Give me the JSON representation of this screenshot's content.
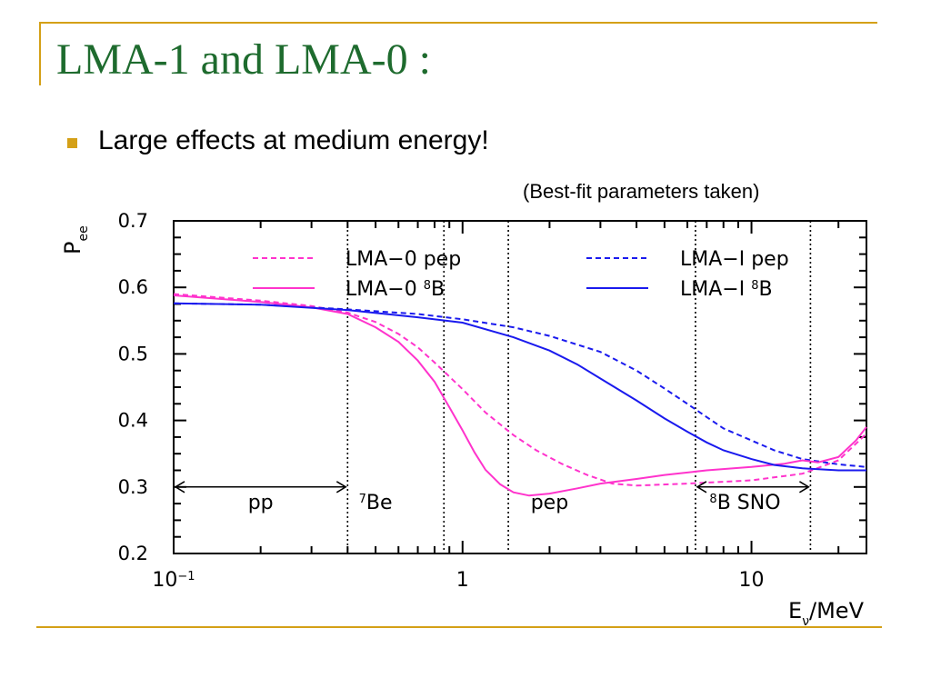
{
  "slide": {
    "title": "LMA-1 and LMA-0 :",
    "bullet": "Large effects at medium energy!",
    "note": "(Best-fit parameters taken)",
    "accent_color": "#d4a017",
    "title_color": "#1e6b2e"
  },
  "chart_data": {
    "type": "line",
    "xscale": "log",
    "xlim": [
      0.1,
      25
    ],
    "ylim": [
      0.2,
      0.7
    ],
    "xlabel": "E",
    "xlabel_sub": "ν",
    "xlabel_unit": "/MeV",
    "ylabel": "P",
    "ylabel_sub": "ee",
    "x_tick_labels": [
      {
        "base": "10",
        "sup": "−1",
        "x": 0.1
      },
      {
        "base": "1",
        "sup": "",
        "x": 1
      },
      {
        "base": "10",
        "sup": "",
        "x": 10
      }
    ],
    "y_ticks": [
      0.2,
      0.3,
      0.4,
      0.5,
      0.6,
      0.7
    ],
    "y_tick_labels": [
      "0.2",
      "0.3",
      "0.4",
      "0.5",
      "0.6",
      "0.7"
    ],
    "legend_position": "top",
    "series": [
      {
        "name_prefix": "LMA−0 pep",
        "name_sup": "",
        "name_suffix": "",
        "color": "#ff33cc",
        "dashed": true,
        "points": [
          [
            0.1,
            0.59
          ],
          [
            0.2,
            0.58
          ],
          [
            0.3,
            0.572
          ],
          [
            0.4,
            0.562
          ],
          [
            0.5,
            0.548
          ],
          [
            0.6,
            0.53
          ],
          [
            0.7,
            0.51
          ],
          [
            0.8,
            0.487
          ],
          [
            1.0,
            0.447
          ],
          [
            1.2,
            0.412
          ],
          [
            1.5,
            0.378
          ],
          [
            1.8,
            0.355
          ],
          [
            2.2,
            0.335
          ],
          [
            2.7,
            0.318
          ],
          [
            3.3,
            0.305
          ],
          [
            4,
            0.302
          ],
          [
            6,
            0.305
          ],
          [
            10,
            0.31
          ],
          [
            15,
            0.32
          ],
          [
            20,
            0.34
          ],
          [
            25,
            0.38
          ]
        ]
      },
      {
        "name_prefix": "LMA−I pep",
        "name_sup": "",
        "name_suffix": "",
        "color": "#1a1aee",
        "dashed": true,
        "points": [
          [
            0.1,
            0.576
          ],
          [
            0.2,
            0.574
          ],
          [
            0.4,
            0.567
          ],
          [
            0.7,
            0.56
          ],
          [
            1.0,
            0.552
          ],
          [
            1.5,
            0.54
          ],
          [
            2,
            0.527
          ],
          [
            3,
            0.503
          ],
          [
            4,
            0.475
          ],
          [
            5,
            0.448
          ],
          [
            6,
            0.425
          ],
          [
            7,
            0.405
          ],
          [
            8,
            0.388
          ],
          [
            10,
            0.37
          ],
          [
            12,
            0.355
          ],
          [
            15,
            0.342
          ],
          [
            20,
            0.334
          ],
          [
            25,
            0.33
          ]
        ]
      },
      {
        "name_prefix": "LMA−0 ",
        "name_sup": "8",
        "name_suffix": "B",
        "color": "#ff33cc",
        "dashed": false,
        "points": [
          [
            0.1,
            0.588
          ],
          [
            0.2,
            0.578
          ],
          [
            0.3,
            0.57
          ],
          [
            0.4,
            0.56
          ],
          [
            0.5,
            0.54
          ],
          [
            0.6,
            0.518
          ],
          [
            0.7,
            0.49
          ],
          [
            0.8,
            0.458
          ],
          [
            0.9,
            0.42
          ],
          [
            1.0,
            0.385
          ],
          [
            1.1,
            0.352
          ],
          [
            1.2,
            0.326
          ],
          [
            1.35,
            0.304
          ],
          [
            1.5,
            0.292
          ],
          [
            1.7,
            0.287
          ],
          [
            2,
            0.29
          ],
          [
            2.5,
            0.298
          ],
          [
            3,
            0.305
          ],
          [
            4,
            0.312
          ],
          [
            5,
            0.318
          ],
          [
            7,
            0.325
          ],
          [
            10,
            0.33
          ],
          [
            13,
            0.335
          ],
          [
            15,
            0.34
          ],
          [
            17,
            0.337
          ],
          [
            20,
            0.345
          ],
          [
            23,
            0.37
          ],
          [
            25,
            0.39
          ]
        ]
      },
      {
        "name_prefix": "LMA−I ",
        "name_sup": "8",
        "name_suffix": "B",
        "color": "#1a1aee",
        "dashed": false,
        "points": [
          [
            0.1,
            0.576
          ],
          [
            0.2,
            0.574
          ],
          [
            0.4,
            0.566
          ],
          [
            0.7,
            0.555
          ],
          [
            1.0,
            0.547
          ],
          [
            1.5,
            0.525
          ],
          [
            2,
            0.505
          ],
          [
            2.5,
            0.484
          ],
          [
            3,
            0.463
          ],
          [
            4,
            0.43
          ],
          [
            5,
            0.403
          ],
          [
            6,
            0.383
          ],
          [
            7,
            0.367
          ],
          [
            8,
            0.355
          ],
          [
            10,
            0.342
          ],
          [
            12,
            0.333
          ],
          [
            15,
            0.328
          ],
          [
            20,
            0.325
          ],
          [
            25,
            0.325
          ]
        ]
      }
    ],
    "vertical_lines": [
      0.4,
      0.862,
      1.44,
      6.4,
      16.0
    ],
    "ranges": [
      {
        "label": "pp",
        "label_sup": "",
        "x_label": 0.2,
        "arrow": [
          0.1,
          0.4
        ]
      },
      {
        "label": "Be",
        "label_sup": "7",
        "x_label": 0.5,
        "arrow": null
      },
      {
        "label": "pep",
        "label_sup": "",
        "x_label": 2.0,
        "arrow": null
      },
      {
        "label": "B SNO",
        "label_sup": "8",
        "x_label": 9.5,
        "arrow": [
          6.4,
          16.0
        ]
      }
    ]
  }
}
